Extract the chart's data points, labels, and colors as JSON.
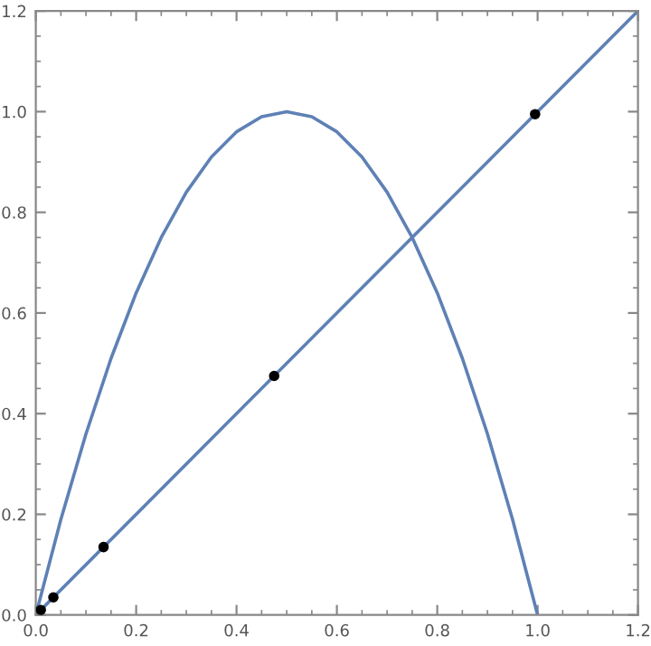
{
  "chart_data": {
    "type": "line",
    "xlim": [
      0,
      1.2
    ],
    "ylim": [
      0,
      1.2
    ],
    "xticks": [
      {
        "value": 0,
        "label": "0.0"
      },
      0.2,
      0.4,
      0.6,
      0.8,
      {
        "value": 1,
        "label": "1.0"
      },
      1.2
    ],
    "yticks": [
      {
        "value": 0,
        "label": "0.0"
      },
      0.2,
      0.4,
      0.6,
      0.8,
      {
        "value": 1,
        "label": "1.0"
      },
      1.2
    ],
    "grid": false,
    "legend": false,
    "marker": "none",
    "line_style": "solid",
    "series": [
      {
        "color": "#5e81b5",
        "x": [
          0,
          0.05,
          0.1,
          0.15,
          0.2,
          0.25,
          0.3,
          0.35,
          0.4,
          0.45,
          0.5,
          0.55,
          0.6,
          0.65,
          0.7,
          0.75,
          0.8,
          0.85,
          0.9,
          0.95,
          1.0
        ],
        "values": [
          0,
          0.19,
          0.36,
          0.51,
          0.64,
          0.75,
          0.84,
          0.91,
          0.96,
          0.99,
          1.0,
          0.99,
          0.96,
          0.91,
          0.84,
          0.75,
          0.64,
          0.51,
          0.36,
          0.19,
          0
        ]
      },
      {
        "color": "#5e81b5",
        "x": [
          0,
          1.2
        ],
        "values": [
          0,
          1.2
        ]
      },
      {
        "type": "scatter",
        "marker": "circle",
        "color": "#000000",
        "x": [
          0.01,
          0.035,
          0.135,
          0.475,
          0.995
        ],
        "values": [
          0.01,
          0.035,
          0.135,
          0.475,
          0.995
        ]
      }
    ]
  }
}
